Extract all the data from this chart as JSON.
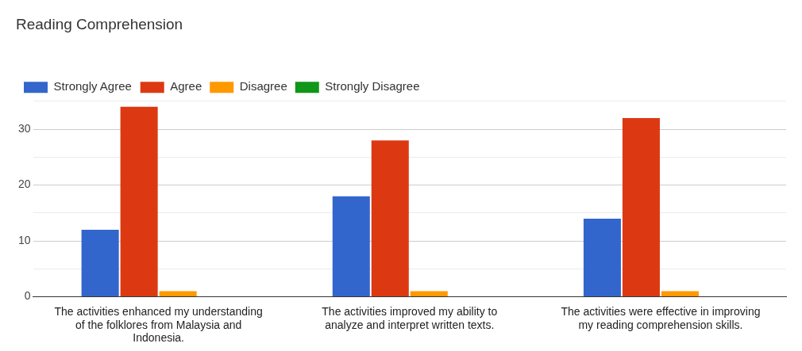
{
  "chart_data": {
    "type": "bar",
    "title": "Reading Comprehension",
    "categories": [
      "The activities enhanced my understanding of the folklores from Malaysia and Indonesia.",
      "The activities improved my ability to analyze and interpret written texts.",
      "The activities were effective in improving my reading comprehension skills."
    ],
    "series": [
      {
        "name": "Strongly Agree",
        "color": "#3366cc",
        "values": [
          12,
          18,
          14
        ]
      },
      {
        "name": "Agree",
        "color": "#dc3912",
        "values": [
          34,
          28,
          32
        ]
      },
      {
        "name": "Disagree",
        "color": "#ff9900",
        "values": [
          1,
          1,
          1
        ]
      },
      {
        "name": "Strongly Disagree",
        "color": "#109618",
        "values": [
          0,
          0,
          0
        ]
      }
    ],
    "ylim": [
      0,
      35
    ],
    "yticks": [
      0,
      {
        "value": 5,
        "label": null
      },
      10,
      {
        "value": 15,
        "label": null
      },
      20,
      {
        "value": 25,
        "label": null
      },
      30,
      {
        "value": 35,
        "label": null
      }
    ],
    "grid": "y",
    "legend": "top left"
  }
}
